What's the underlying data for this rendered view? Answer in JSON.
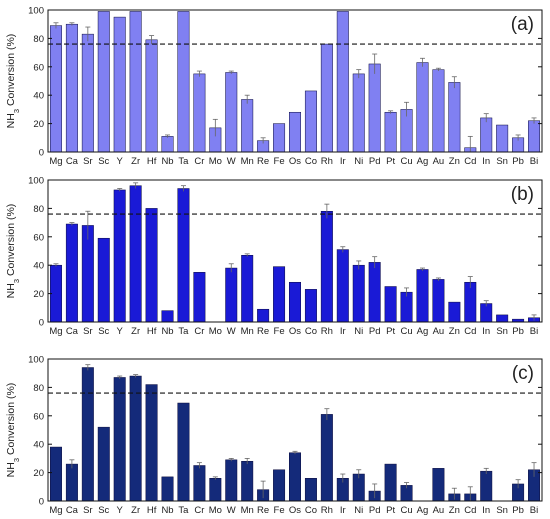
{
  "chart_data": [
    {
      "type": "bar",
      "panel_label": "(a)",
      "ylabel": "NH3 Conversion (%)",
      "ylabel_main": "NH",
      "ylabel_sub": "3",
      "ylabel_rest": " Conversion (%)",
      "ylim": [
        0,
        100
      ],
      "yticks": [
        0,
        20,
        40,
        60,
        80,
        100
      ],
      "reference_line": 76,
      "bar_color": "#8080f2",
      "categories": [
        "Mg",
        "Ca",
        "Sr",
        "Sc",
        "Y",
        "Zr",
        "Hf",
        "Nb",
        "Ta",
        "Cr",
        "Mo",
        "W",
        "Mn",
        "Re",
        "Fe",
        "Os",
        "Co",
        "Rh",
        "Ir",
        "Ni",
        "Pd",
        "Pt",
        "Cu",
        "Ag",
        "Au",
        "Zn",
        "Cd",
        "In",
        "Sn",
        "Pb",
        "Bi"
      ],
      "values": [
        89,
        90,
        83,
        99,
        95,
        99,
        79,
        11,
        99,
        55,
        17,
        56,
        37,
        8,
        20,
        28,
        43,
        76,
        99,
        55,
        62,
        28,
        30,
        63,
        58,
        49,
        3,
        24,
        19,
        10,
        22
      ],
      "errors": [
        2,
        1,
        5,
        0,
        0,
        0,
        3,
        1,
        0,
        2,
        6,
        1,
        3,
        2,
        0,
        0,
        0,
        0,
        0,
        3,
        7,
        1,
        5,
        3,
        1,
        4,
        8,
        3,
        0,
        2,
        2
      ]
    },
    {
      "type": "bar",
      "panel_label": "(b)",
      "ylabel": "NH3 Conversion (%)",
      "ylabel_main": "NH",
      "ylabel_sub": "3",
      "ylabel_rest": " Conversion (%)",
      "ylim": [
        0,
        100
      ],
      "yticks": [
        0,
        20,
        40,
        60,
        80,
        100
      ],
      "reference_line": 76,
      "bar_color": "#1a1ad6",
      "categories": [
        "Mg",
        "Ca",
        "Sr",
        "Sc",
        "Y",
        "Zr",
        "Hf",
        "Nb",
        "Ta",
        "Cr",
        "Mo",
        "W",
        "Mn",
        "Re",
        "Fe",
        "Os",
        "Co",
        "Rh",
        "Ir",
        "Ni",
        "Pd",
        "Pt",
        "Cu",
        "Ag",
        "Au",
        "Zn",
        "Cd",
        "In",
        "Sn",
        "Pb",
        "Bi"
      ],
      "values": [
        40,
        69,
        68,
        59,
        93,
        96,
        80,
        8,
        94,
        35,
        0,
        38,
        47,
        9,
        39,
        28,
        23,
        78,
        51,
        40,
        42,
        25,
        21,
        37,
        30,
        14,
        28,
        13,
        5,
        2,
        3
      ],
      "errors": [
        1,
        1,
        10,
        0,
        1,
        2,
        0,
        0,
        2,
        0,
        1,
        3,
        1,
        0,
        0,
        0,
        0,
        5,
        2,
        3,
        4,
        0,
        3,
        1,
        1,
        0,
        4,
        2,
        0,
        0,
        2
      ]
    },
    {
      "type": "bar",
      "panel_label": "(c)",
      "ylabel": "NH3 Conversion (%)",
      "ylabel_main": "NH",
      "ylabel_sub": "3",
      "ylabel_rest": " Conversion (%)",
      "ylim": [
        0,
        100
      ],
      "yticks": [
        0,
        20,
        40,
        60,
        80,
        100
      ],
      "reference_line": 76,
      "bar_color": "#142a7a",
      "categories": [
        "Mg",
        "Ca",
        "Sr",
        "Sc",
        "Y",
        "Zr",
        "Hf",
        "Nb",
        "Ta",
        "Cr",
        "Mo",
        "W",
        "Mn",
        "Re",
        "Fe",
        "Os",
        "Co",
        "Rh",
        "Ir",
        "Ni",
        "Pd",
        "Pt",
        "Cu",
        "Ag",
        "Au",
        "Zn",
        "Cd",
        "In",
        "Sn",
        "Pb",
        "Bi"
      ],
      "values": [
        38,
        26,
        94,
        52,
        87,
        88,
        82,
        17,
        69,
        25,
        16,
        29,
        28,
        8,
        22,
        34,
        16,
        61,
        16,
        19,
        7,
        26,
        11,
        0,
        23,
        5,
        5,
        21,
        0,
        12,
        22
      ],
      "errors": [
        0,
        3,
        2,
        0,
        1,
        1,
        0,
        0,
        0,
        2,
        1,
        1,
        2,
        6,
        0,
        1,
        0,
        4,
        3,
        3,
        5,
        0,
        2,
        0,
        0,
        4,
        5,
        2,
        0,
        3,
        5
      ]
    }
  ]
}
